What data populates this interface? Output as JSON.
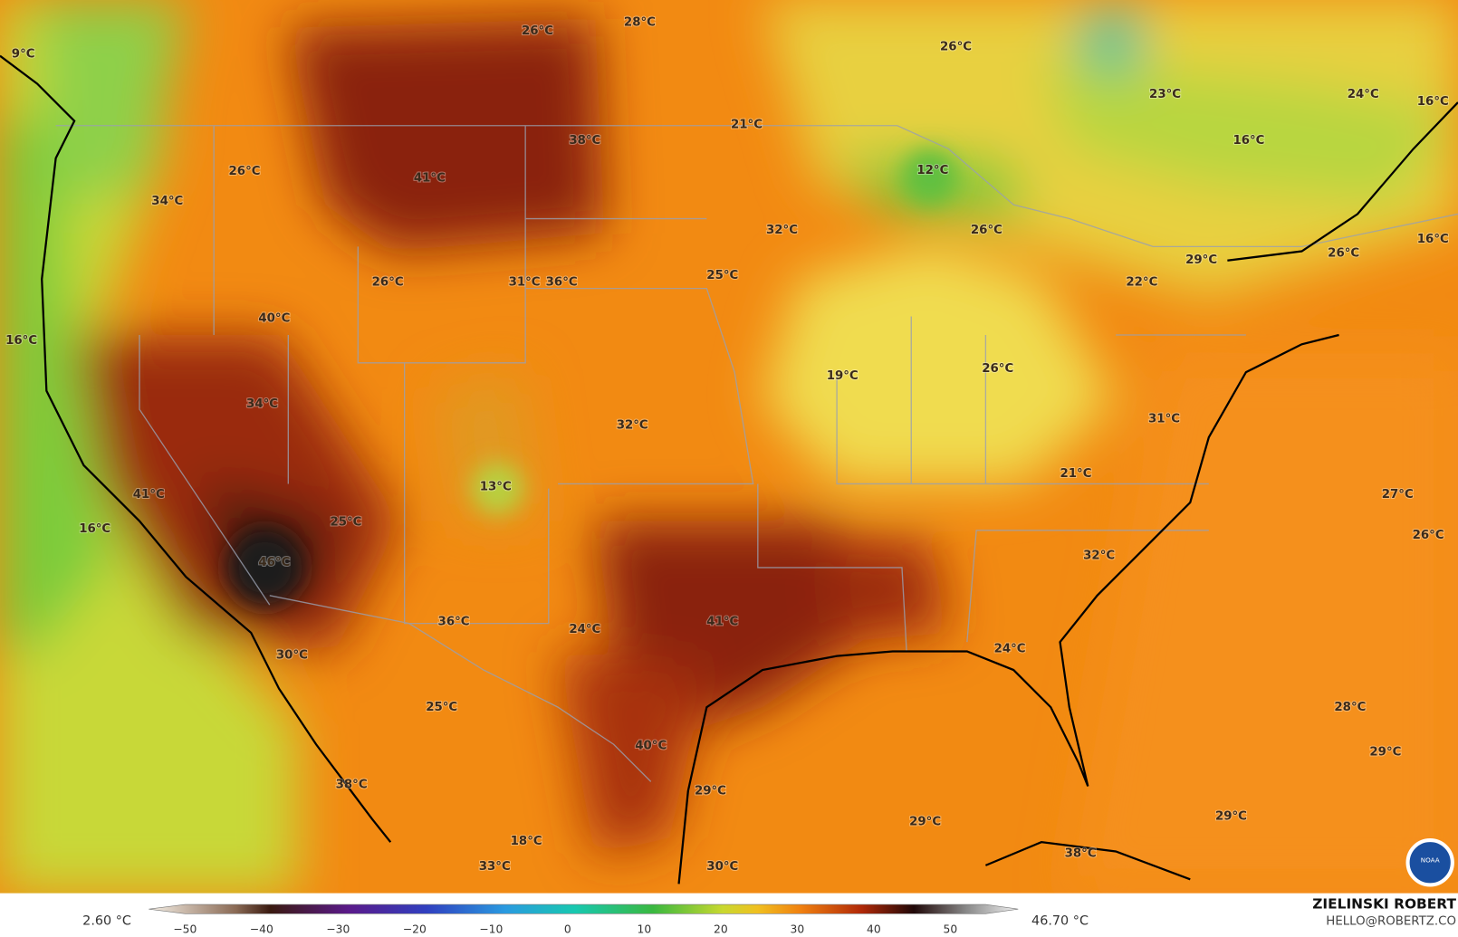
{
  "map_labels": [
    "9°C",
    "26°C",
    "28°C",
    "26°C",
    "23°C",
    "24°C",
    "16°C",
    "21°C",
    "38°C",
    "16°C",
    "26°C",
    "41°C",
    "12°C",
    "34°C",
    "32°C",
    "26°C",
    "29°C",
    "26°C",
    "16°C",
    "25°C",
    "22°C",
    "26°C",
    "31°C",
    "36°C",
    "40°C",
    "16°C",
    "19°C",
    "26°C",
    "34°C",
    "31°C",
    "32°C",
    "21°C",
    "13°C",
    "27°C",
    "41°C",
    "25°C",
    "16°C",
    "26°C",
    "46°C",
    "32°C",
    "41°C",
    "36°C",
    "24°C",
    "24°C",
    "30°C",
    "25°C",
    "28°C",
    "40°C",
    "29°C",
    "38°C",
    "29°C",
    "29°C",
    "29°C",
    "18°C",
    "33°C",
    "30°C",
    "38°C"
  ],
  "colorbar": {
    "min_label": "2.60 °C",
    "max_label": "46.70 °C",
    "ticks": [
      "−50",
      "−40",
      "−30",
      "−20",
      "−10",
      "0",
      "10",
      "20",
      "30",
      "40",
      "50"
    ]
  },
  "credit": {
    "author": "ZIELINSKI ROBERT",
    "email": "HELLO@ROBERTZ.CO",
    "logo": "NOAA"
  }
}
